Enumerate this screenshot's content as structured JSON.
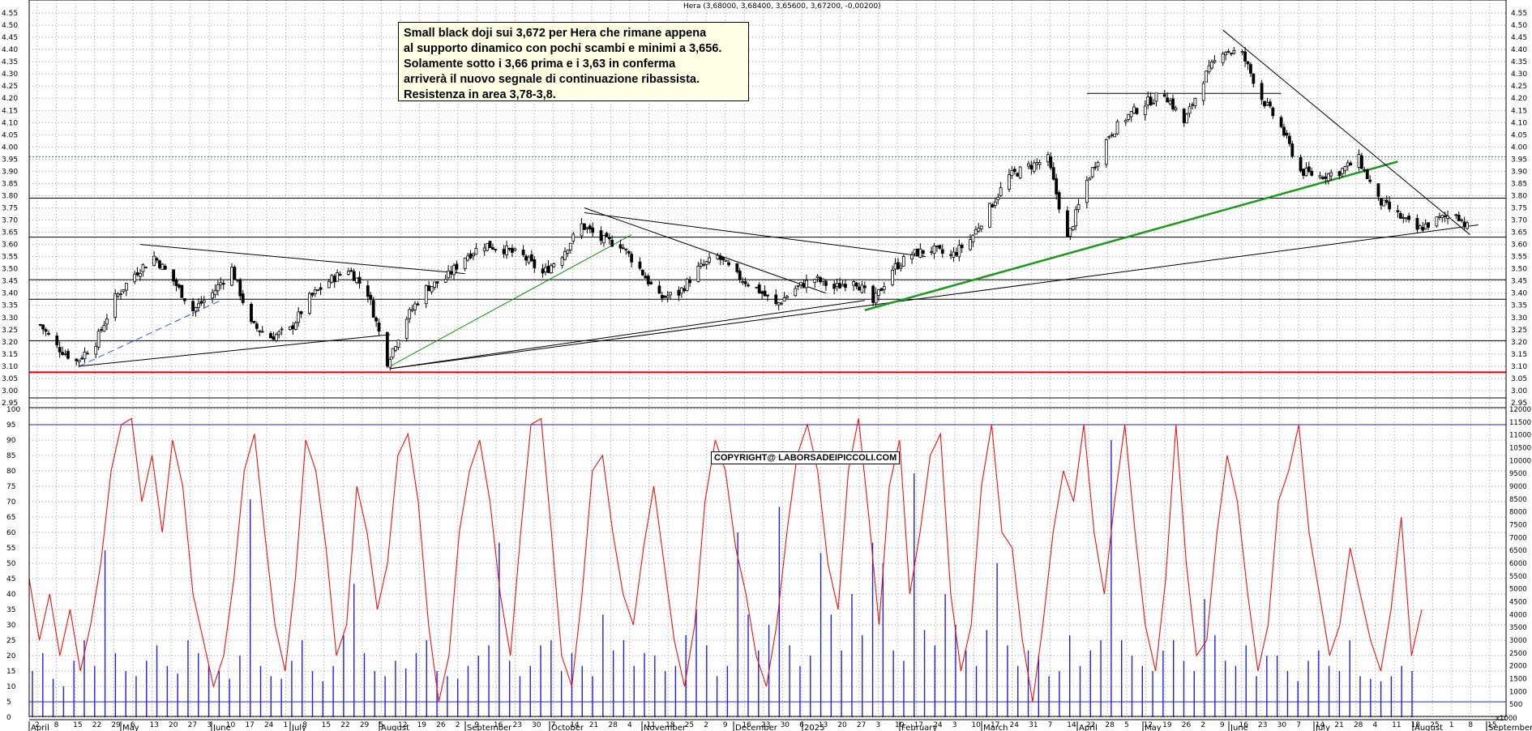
{
  "chart_data": [
    {
      "type": "candlestick",
      "series_label": "Hera (3,68000, 3,68400, 3,65600, 3,67200, -0,00200)",
      "y_ticks": [
        "4.55",
        "4.50",
        "4.45",
        "4.40",
        "4.35",
        "4.30",
        "4.25",
        "4.20",
        "4.15",
        "4.10",
        "4.05",
        "4.00",
        "3.95",
        "3.90",
        "3.85",
        "3.80",
        "3.75",
        "3.70",
        "3.65",
        "3.60",
        "3.55",
        "3.50",
        "3.45",
        "3.40",
        "3.35",
        "3.30",
        "3.25",
        "3.20",
        "3.15",
        "3.10",
        "3.05",
        "3.00",
        "2.95"
      ],
      "ylim": [
        2.93,
        4.57
      ],
      "close_path": [
        [
          "2024-04-02",
          3.27
        ],
        [
          "2024-04-08",
          3.18
        ],
        [
          "2024-04-15",
          3.12
        ],
        [
          "2024-04-22",
          3.2
        ],
        [
          "2024-04-29",
          3.38
        ],
        [
          "2024-05-06",
          3.48
        ],
        [
          "2024-05-13",
          3.55
        ],
        [
          "2024-05-20",
          3.45
        ],
        [
          "2024-05-27",
          3.33
        ],
        [
          "2024-06-03",
          3.4
        ],
        [
          "2024-06-10",
          3.5
        ],
        [
          "2024-06-17",
          3.27
        ],
        [
          "2024-06-24",
          3.22
        ],
        [
          "2024-07-01",
          3.25
        ],
        [
          "2024-07-08",
          3.38
        ],
        [
          "2024-07-15",
          3.45
        ],
        [
          "2024-07-22",
          3.5
        ],
        [
          "2024-07-29",
          3.4
        ],
        [
          "2024-08-05",
          3.12
        ],
        [
          "2024-08-12",
          3.3
        ],
        [
          "2024-08-19",
          3.42
        ],
        [
          "2024-08-26",
          3.46
        ],
        [
          "2024-09-02",
          3.55
        ],
        [
          "2024-09-09",
          3.6
        ],
        [
          "2024-09-16",
          3.58
        ],
        [
          "2024-09-23",
          3.55
        ],
        [
          "2024-09-30",
          3.48
        ],
        [
          "2024-10-07",
          3.56
        ],
        [
          "2024-10-14",
          3.68
        ],
        [
          "2024-10-21",
          3.62
        ],
        [
          "2024-10-28",
          3.6
        ],
        [
          "2024-11-04",
          3.5
        ],
        [
          "2024-11-11",
          3.38
        ],
        [
          "2024-11-18",
          3.4
        ],
        [
          "2024-11-25",
          3.5
        ],
        [
          "2024-12-02",
          3.55
        ],
        [
          "2024-12-09",
          3.47
        ],
        [
          "2024-12-16",
          3.42
        ],
        [
          "2024-12-23",
          3.35
        ],
        [
          "2024-12-30",
          3.42
        ],
        [
          "2025-01-06",
          3.46
        ],
        [
          "2025-01-13",
          3.42
        ],
        [
          "2025-01-20",
          3.46
        ],
        [
          "2025-01-27",
          3.36
        ],
        [
          "2025-02-03",
          3.5
        ],
        [
          "2025-02-10",
          3.56
        ],
        [
          "2025-02-17",
          3.58
        ],
        [
          "2025-02-24",
          3.55
        ],
        [
          "2025-03-03",
          3.62
        ],
        [
          "2025-03-10",
          3.75
        ],
        [
          "2025-03-17",
          3.88
        ],
        [
          "2025-03-24",
          3.92
        ],
        [
          "2025-03-31",
          3.95
        ],
        [
          "2025-04-07",
          3.62
        ],
        [
          "2025-04-14",
          3.86
        ],
        [
          "2025-04-22",
          4.05
        ],
        [
          "2025-04-28",
          4.12
        ],
        [
          "2025-05-05",
          4.18
        ],
        [
          "2025-05-12",
          4.22
        ],
        [
          "2025-05-19",
          4.1
        ],
        [
          "2025-05-26",
          4.28
        ],
        [
          "2025-06-02",
          4.4
        ],
        [
          "2025-06-09",
          4.38
        ],
        [
          "2025-06-16",
          4.2
        ],
        [
          "2025-06-23",
          4.08
        ],
        [
          "2025-06-30",
          3.9
        ],
        [
          "2025-07-07",
          3.88
        ],
        [
          "2025-07-14",
          3.9
        ],
        [
          "2025-07-21",
          3.95
        ],
        [
          "2025-07-28",
          3.78
        ],
        [
          "2025-08-04",
          3.72
        ],
        [
          "2025-08-11",
          3.66
        ],
        [
          "2025-08-18",
          3.7
        ],
        [
          "2025-08-25",
          3.73
        ],
        [
          "2025-08-29",
          3.672
        ]
      ],
      "horizontal_lines": [
        {
          "y": 3.96,
          "style": "dotted",
          "color": "#2e7d4f"
        },
        {
          "y": 3.79,
          "style": "solid",
          "color": "#000000"
        },
        {
          "y": 3.63,
          "style": "solid",
          "color": "#000000"
        },
        {
          "y": 3.455,
          "style": "solid",
          "color": "#000000"
        },
        {
          "y": 3.375,
          "style": "solid",
          "color": "#000000"
        },
        {
          "y": 3.205,
          "style": "solid",
          "color": "#000000"
        },
        {
          "y": 3.075,
          "style": "solid",
          "color": "#e00000"
        },
        {
          "y": 2.97,
          "style": "solid",
          "color": "#000000"
        },
        {
          "y": 4.22,
          "style": "solid",
          "color": "#000000",
          "from": "2025-04-14",
          "to": "2025-06-23"
        }
      ],
      "trend_lines": [
        {
          "from": [
            "2024-04-16",
            3.1
          ],
          "to": [
            "2024-06-06",
            3.37
          ],
          "color": "#3050ff",
          "dashed": true
        },
        {
          "from": [
            "2024-04-16",
            3.1
          ],
          "to": [
            "2024-08-06",
            3.23
          ],
          "color": "#000000"
        },
        {
          "from": [
            "2024-05-08",
            3.6
          ],
          "to": [
            "2024-09-02",
            3.48
          ],
          "color": "#000000"
        },
        {
          "from": [
            "2024-08-06",
            3.1
          ],
          "to": [
            "2024-11-01",
            3.64
          ],
          "color": "#109010"
        },
        {
          "from": [
            "2024-08-06",
            3.09
          ],
          "to": [
            "2025-01-24",
            3.37
          ],
          "color": "#000000"
        },
        {
          "from": [
            "2024-10-15",
            3.73
          ],
          "to": [
            "2025-02-15",
            3.55
          ],
          "color": "#000000"
        },
        {
          "from": [
            "2024-10-15",
            3.75
          ],
          "to": [
            "2025-01-10",
            3.4
          ],
          "color": "#000000"
        },
        {
          "from": [
            "2024-08-06",
            3.09
          ],
          "to": [
            "2025-09-02",
            3.68
          ],
          "color": "#000000"
        },
        {
          "from": [
            "2025-01-24",
            3.33
          ],
          "to": [
            "2025-08-04",
            3.94
          ],
          "color": "#1a9a1a",
          "width": 2.5
        },
        {
          "from": [
            "2025-06-02",
            4.48
          ],
          "to": [
            "2025-08-30",
            3.64
          ],
          "color": "#000000"
        }
      ],
      "annotation": [
        "Small black doji sui 3,672 per Hera che rimane appena",
        "al supporto dinamico con pochi scambi e minimi a 3,656.",
        "Solamente sotto i 3,66 prima e i 3,63 in conferma",
        "arriverà il nuovo segnale di continuazione ribassista.",
        "Resistenza in area 3,78-3,8."
      ],
      "watermark": "COPYRIGHT@ LABORSADEIPICCOLI.COM"
    },
    {
      "type": "line+bar",
      "oscillator_ticks": [
        "100",
        "95",
        "90",
        "85",
        "80",
        "75",
        "70",
        "65",
        "60",
        "55",
        "50",
        "45",
        "40",
        "35",
        "30",
        "25",
        "20",
        "15",
        "10",
        "5",
        "0"
      ],
      "volume_ticks": [
        "12000",
        "11500",
        "11000",
        "10500",
        "10000",
        "9500",
        "9000",
        "8500",
        "8000",
        "7500",
        "7000",
        "6500",
        "6000",
        "5500",
        "5000",
        "4500",
        "4000",
        "3500",
        "3000",
        "2500",
        "2000",
        "1500",
        "1000",
        "500"
      ],
      "volume_unit": "x1000",
      "upper_band": 95,
      "lower_band": 5,
      "oscillator_values": [
        45,
        25,
        40,
        20,
        35,
        15,
        30,
        50,
        80,
        95,
        97,
        70,
        85,
        60,
        90,
        75,
        40,
        25,
        10,
        20,
        45,
        80,
        92,
        60,
        30,
        15,
        45,
        90,
        80,
        55,
        20,
        30,
        75,
        60,
        35,
        50,
        85,
        92,
        70,
        30,
        5,
        20,
        60,
        80,
        90,
        70,
        40,
        20,
        60,
        95,
        97,
        60,
        20,
        10,
        40,
        80,
        85,
        60,
        40,
        30,
        55,
        75,
        50,
        25,
        10,
        30,
        70,
        90,
        80,
        55,
        40,
        20,
        10,
        30,
        60,
        85,
        95,
        80,
        50,
        35,
        80,
        97,
        65,
        30,
        75,
        90,
        40,
        60,
        85,
        92,
        40,
        15,
        30,
        75,
        95,
        60,
        55,
        25,
        5,
        30,
        60,
        80,
        70,
        95,
        60,
        40,
        70,
        95,
        60,
        30,
        15,
        45,
        95,
        50,
        20,
        25,
        60,
        85,
        70,
        40,
        15,
        30,
        70,
        80,
        95,
        60,
        40,
        20,
        30,
        55,
        40,
        25,
        15,
        35,
        65,
        20,
        35
      ],
      "volume_values": [
        1800,
        2500,
        1500,
        1200,
        2200,
        3000,
        2000,
        6500,
        2500,
        1800,
        1600,
        2200,
        2800,
        2000,
        1700,
        3000,
        2500,
        2000,
        1800,
        1500,
        2400,
        8500,
        2000,
        1600,
        1500,
        2200,
        3000,
        1800,
        1400,
        2000,
        3200,
        5200,
        2500,
        1800,
        1600,
        2200,
        1900,
        2500,
        3000,
        1800,
        1600,
        1500,
        2000,
        2400,
        2800,
        6800,
        2200,
        1600,
        2000,
        2800,
        3000,
        1800,
        2500,
        2000,
        1600,
        4000,
        2600,
        3000,
        2000,
        2500,
        2400,
        1800,
        2000,
        3200,
        4200,
        2800,
        1600,
        2000,
        7200,
        4000,
        2600,
        3600,
        8200,
        2800,
        2000,
        2400,
        6400,
        4000,
        2600,
        4800,
        3200,
        6800,
        6000,
        2600,
        2200,
        9500,
        3400,
        2800,
        4800,
        3600,
        2600,
        2000,
        3400,
        6000,
        2800,
        2000,
        2600,
        2400,
        1600,
        1800,
        3200,
        2000,
        2600,
        3000,
        10800,
        3000,
        2400,
        2000,
        1800,
        2600,
        3000,
        2200,
        1800,
        4600,
        3200,
        2200,
        2000,
        2800,
        1600,
        2400,
        2400,
        1800,
        1400,
        2200,
        2600,
        2000,
        1800,
        3000,
        1600,
        1500,
        1400,
        1600,
        2000,
        1800
      ]
    }
  ],
  "x_axis": {
    "day_ticks": [
      "2",
      "8",
      "15",
      "22",
      "29",
      "6",
      "13",
      "20",
      "27",
      "3",
      "10",
      "17",
      "24",
      "1",
      "8",
      "15",
      "22",
      "29",
      "5",
      "12",
      "19",
      "26",
      "2",
      "9",
      "16",
      "23",
      "30",
      "7",
      "14",
      "21",
      "28",
      "4",
      "11",
      "18",
      "25",
      "2",
      "9",
      "16",
      "23",
      "30",
      "6",
      "13",
      "20",
      "27",
      "3",
      "10",
      "17",
      "24",
      "3",
      "10",
      "17",
      "24",
      "31",
      "7",
      "14",
      "22",
      "28",
      "5",
      "12",
      "19",
      "26",
      "2",
      "9",
      "16",
      "23",
      "30",
      "7",
      "14",
      "21",
      "28",
      "4",
      "11",
      "18",
      "25",
      "1",
      "8",
      "15"
    ],
    "month_labels": [
      "April",
      "May",
      "June",
      "July",
      "August",
      "September",
      "October",
      "November",
      "December",
      "2025",
      "February",
      "March",
      "April",
      "May",
      "June",
      "July",
      "August",
      "September"
    ]
  }
}
